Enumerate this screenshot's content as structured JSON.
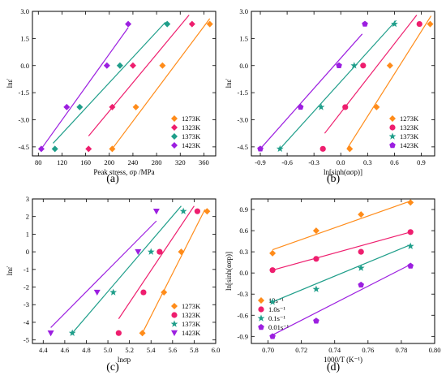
{
  "colors": {
    "1273K": "#ff8c1a",
    "1323K": "#ee1e6e",
    "1373K": "#1f9e8a",
    "1423K": "#9c1fe0",
    "10s": "#ff8c1a",
    "1s": "#ee1e6e",
    "0.1s": "#1f9e8a",
    "0.01s": "#9c1fe0"
  },
  "chart_data": [
    {
      "id": "a",
      "caption": "(a)",
      "type": "scatter",
      "xlabel": "Peak stress, σp /MPa",
      "ylabel": "lnε̇",
      "xlim": [
        70,
        380
      ],
      "ylim": [
        -5.0,
        3.0
      ],
      "xticks": [
        "80",
        "120",
        "160",
        "200",
        "240",
        "280",
        "320",
        "360"
      ],
      "yticks": [
        "3.0",
        "1.5",
        "0.0",
        "-1.5",
        "-3.0",
        "-4.5"
      ],
      "legend_position": "bottom-right",
      "series": [
        {
          "name": "1273K",
          "marker": "diamond",
          "points": [
            [
              205,
              -4.61
            ],
            [
              245,
              -2.3
            ],
            [
              290,
              0.0
            ],
            [
              370,
              2.3
            ]
          ],
          "fit": [
            [
              205,
              -4.61
            ],
            [
              370,
              2.6
            ]
          ]
        },
        {
          "name": "1323K",
          "marker": "diamond",
          "points": [
            [
              165,
              -4.61
            ],
            [
              205,
              -2.3
            ],
            [
              240,
              0.0
            ],
            [
              340,
              2.3
            ]
          ],
          "fit": [
            [
              165,
              -3.9
            ],
            [
              335,
              2.8
            ]
          ]
        },
        {
          "name": "1373K",
          "marker": "diamond",
          "points": [
            [
              108,
              -4.61
            ],
            [
              150,
              -2.3
            ],
            [
              218,
              0.0
            ],
            [
              298,
              2.3
            ]
          ],
          "fit": [
            [
              105,
              -4.3
            ],
            [
              295,
              2.4
            ]
          ]
        },
        {
          "name": "1423K",
          "marker": "diamond",
          "points": [
            [
              85,
              -4.61
            ],
            [
              128,
              -2.3
            ],
            [
              196,
              0.0
            ],
            [
              232,
              2.3
            ]
          ],
          "fit": [
            [
              85,
              -4.61
            ],
            [
              232,
              2.1
            ]
          ]
        }
      ]
    },
    {
      "id": "b",
      "caption": "(b)",
      "type": "scatter",
      "xlabel": "ln[sinh(ασp)]",
      "ylabel": "lnε̇",
      "xlim": [
        -1.0,
        1.05
      ],
      "ylim": [
        -5.0,
        3.0
      ],
      "xticks": [
        "-0.9",
        "-0.6",
        "-0.3",
        "0.0",
        "0.3",
        "0.6",
        "0.9"
      ],
      "yticks": [
        "3.0",
        "1.5",
        "0.0",
        "-1.5",
        "-3.0",
        "-4.5"
      ],
      "legend_position": "bottom-right",
      "series": [
        {
          "name": "1273K",
          "marker": "diamond",
          "points": [
            [
              0.1,
              -4.61
            ],
            [
              0.4,
              -2.3
            ],
            [
              0.55,
              0.0
            ],
            [
              1.0,
              2.3
            ]
          ],
          "fit": [
            [
              0.07,
              -4.61
            ],
            [
              1.01,
              2.75
            ]
          ]
        },
        {
          "name": "1323K",
          "marker": "circle",
          "points": [
            [
              -0.2,
              -4.61
            ],
            [
              0.05,
              -2.3
            ],
            [
              0.25,
              0.0
            ],
            [
              0.88,
              2.3
            ]
          ],
          "fit": [
            [
              -0.18,
              -3.75
            ],
            [
              0.85,
              2.8
            ]
          ]
        },
        {
          "name": "1373K",
          "marker": "star",
          "points": [
            [
              -0.68,
              -4.61
            ],
            [
              -0.22,
              -2.3
            ],
            [
              0.15,
              0.0
            ],
            [
              0.6,
              2.3
            ]
          ],
          "fit": [
            [
              -0.68,
              -4.61
            ],
            [
              0.62,
              2.5
            ]
          ]
        },
        {
          "name": "1423K",
          "marker": "pentagon",
          "points": [
            [
              -0.9,
              -4.61
            ],
            [
              -0.45,
              -2.3
            ],
            [
              -0.02,
              0.0
            ],
            [
              0.27,
              2.3
            ]
          ],
          "fit": [
            [
              -0.9,
              -4.61
            ],
            [
              0.24,
              1.75
            ]
          ]
        }
      ]
    },
    {
      "id": "c",
      "caption": "(c)",
      "type": "scatter",
      "xlabel": "lnσp",
      "ylabel": "lnε̇",
      "xlim": [
        4.3,
        6.0
      ],
      "ylim": [
        -5.2,
        3.0
      ],
      "xticks": [
        "4.4",
        "4.6",
        "4.8",
        "5.0",
        "5.2",
        "5.4",
        "5.6",
        "5.8",
        "6.0"
      ],
      "yticks": [
        "3",
        "2",
        "1",
        "0",
        "-1",
        "-2",
        "-3",
        "-4",
        "-5"
      ],
      "legend_position": "bottom-right",
      "series": [
        {
          "name": "1273K",
          "marker": "diamond",
          "points": [
            [
              5.32,
              -4.61
            ],
            [
              5.52,
              -2.3
            ],
            [
              5.68,
              0.0
            ],
            [
              5.92,
              2.3
            ]
          ],
          "fit": [
            [
              5.32,
              -4.61
            ],
            [
              5.9,
              2.4
            ]
          ]
        },
        {
          "name": "1323K",
          "marker": "circle",
          "points": [
            [
              5.1,
              -4.61
            ],
            [
              5.33,
              -2.3
            ],
            [
              5.48,
              0.0
            ],
            [
              5.83,
              2.3
            ]
          ],
          "fit": [
            [
              5.1,
              -3.8
            ],
            [
              5.8,
              2.6
            ]
          ]
        },
        {
          "name": "1373K",
          "marker": "star",
          "points": [
            [
              4.67,
              -4.61
            ],
            [
              5.05,
              -2.3
            ],
            [
              5.4,
              0.0
            ],
            [
              5.7,
              2.3
            ]
          ],
          "fit": [
            [
              4.67,
              -4.61
            ],
            [
              5.68,
              2.6
            ]
          ]
        },
        {
          "name": "1423K",
          "marker": "triangle-down",
          "points": [
            [
              4.47,
              -4.61
            ],
            [
              4.9,
              -2.3
            ],
            [
              5.28,
              0.0
            ],
            [
              5.45,
              2.3
            ]
          ],
          "fit": [
            [
              4.47,
              -4.3
            ],
            [
              5.45,
              1.75
            ]
          ]
        }
      ]
    },
    {
      "id": "d",
      "caption": "(d)",
      "type": "scatter",
      "xlabel": "1000/T (K⁻¹)",
      "ylabel": "ln[sinh(ασp)]",
      "xlim": [
        0.69,
        0.8
      ],
      "ylim": [
        -1.0,
        1.05
      ],
      "xticks": [
        "0.70",
        "0.72",
        "0.74",
        "0.76",
        "0.78",
        "0.80"
      ],
      "yticks": [
        "0.9",
        "0.6",
        "0.3",
        "0.0",
        "-0.3",
        "-0.6",
        "-0.9"
      ],
      "legend_position": "bottom-left",
      "series": [
        {
          "name": "10s⁻¹",
          "color_key": "10s",
          "marker": "diamond",
          "points": [
            [
              0.7027,
              0.28
            ],
            [
              0.7289,
              0.6
            ],
            [
              0.7558,
              0.83
            ],
            [
              0.7855,
              1.0
            ]
          ],
          "fit": [
            [
              0.7027,
              0.33
            ],
            [
              0.7855,
              1.02
            ]
          ]
        },
        {
          "name": "1.0s⁻¹",
          "color_key": "1s",
          "marker": "circle",
          "points": [
            [
              0.7027,
              0.04
            ],
            [
              0.7289,
              0.2
            ],
            [
              0.7558,
              0.3
            ],
            [
              0.7855,
              0.58
            ]
          ],
          "fit": [
            [
              0.7027,
              0.04
            ],
            [
              0.7855,
              0.58
            ]
          ]
        },
        {
          "name": "0.1s⁻¹",
          "color_key": "0.1s",
          "marker": "star",
          "points": [
            [
              0.7027,
              -0.41
            ],
            [
              0.7289,
              -0.23
            ],
            [
              0.7558,
              0.07
            ],
            [
              0.7855,
              0.38
            ]
          ],
          "fit": [
            [
              0.7027,
              -0.41
            ],
            [
              0.7855,
              0.4
            ]
          ]
        },
        {
          "name": "0.01s⁻¹",
          "color_key": "0.01s",
          "marker": "pentagon",
          "points": [
            [
              0.7027,
              -0.9
            ],
            [
              0.7289,
              -0.68
            ],
            [
              0.7558,
              -0.17
            ],
            [
              0.7855,
              0.1
            ]
          ],
          "fit": [
            [
              0.7027,
              -0.88
            ],
            [
              0.7855,
              0.12
            ]
          ]
        }
      ]
    }
  ]
}
